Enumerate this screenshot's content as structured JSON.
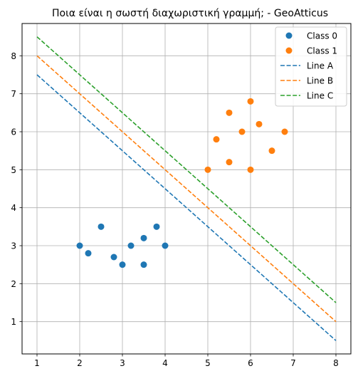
{
  "chart_data": {
    "type": "scatter",
    "title": "Ποια είναι η σωστή διαχωριστική γραμμή; - GeoAtticus",
    "xlabel": "",
    "ylabel": "",
    "xlim": [
      0.65,
      8.35
    ],
    "ylim": [
      0.15,
      8.85
    ],
    "xticks": [
      1,
      2,
      3,
      4,
      5,
      6,
      7,
      8
    ],
    "yticks": [
      1,
      2,
      3,
      4,
      5,
      6,
      7,
      8
    ],
    "grid": true,
    "legend_position": "top-right",
    "series": [
      {
        "name": "Class 0",
        "kind": "scatter",
        "color": "#1f77b4",
        "points": [
          [
            2,
            3
          ],
          [
            2.2,
            2.8
          ],
          [
            2.5,
            3.5
          ],
          [
            2.8,
            2.7
          ],
          [
            3,
            2.5
          ],
          [
            3.2,
            3
          ],
          [
            3.5,
            3.2
          ],
          [
            3.5,
            2.5
          ],
          [
            3.8,
            3.5
          ],
          [
            4,
            3
          ]
        ]
      },
      {
        "name": "Class 1",
        "kind": "scatter",
        "color": "#ff7f0e",
        "points": [
          [
            5,
            5
          ],
          [
            5.2,
            5.8
          ],
          [
            5.5,
            6.5
          ],
          [
            5.5,
            5.2
          ],
          [
            5.8,
            6
          ],
          [
            6,
            6.8
          ],
          [
            6,
            5
          ],
          [
            6.2,
            6.2
          ],
          [
            6.5,
            5.5
          ],
          [
            6.8,
            6
          ]
        ]
      },
      {
        "name": "Line A",
        "kind": "dashed-line",
        "color": "#1f77b4",
        "points": [
          [
            1,
            7.5
          ],
          [
            8,
            0.5
          ]
        ]
      },
      {
        "name": "Line B",
        "kind": "dashed-line",
        "color": "#ff7f0e",
        "points": [
          [
            1,
            8
          ],
          [
            8,
            1
          ]
        ]
      },
      {
        "name": "Line C",
        "kind": "dashed-line",
        "color": "#2ca02c",
        "points": [
          [
            1,
            8.5
          ],
          [
            8,
            1.5
          ]
        ]
      }
    ]
  }
}
